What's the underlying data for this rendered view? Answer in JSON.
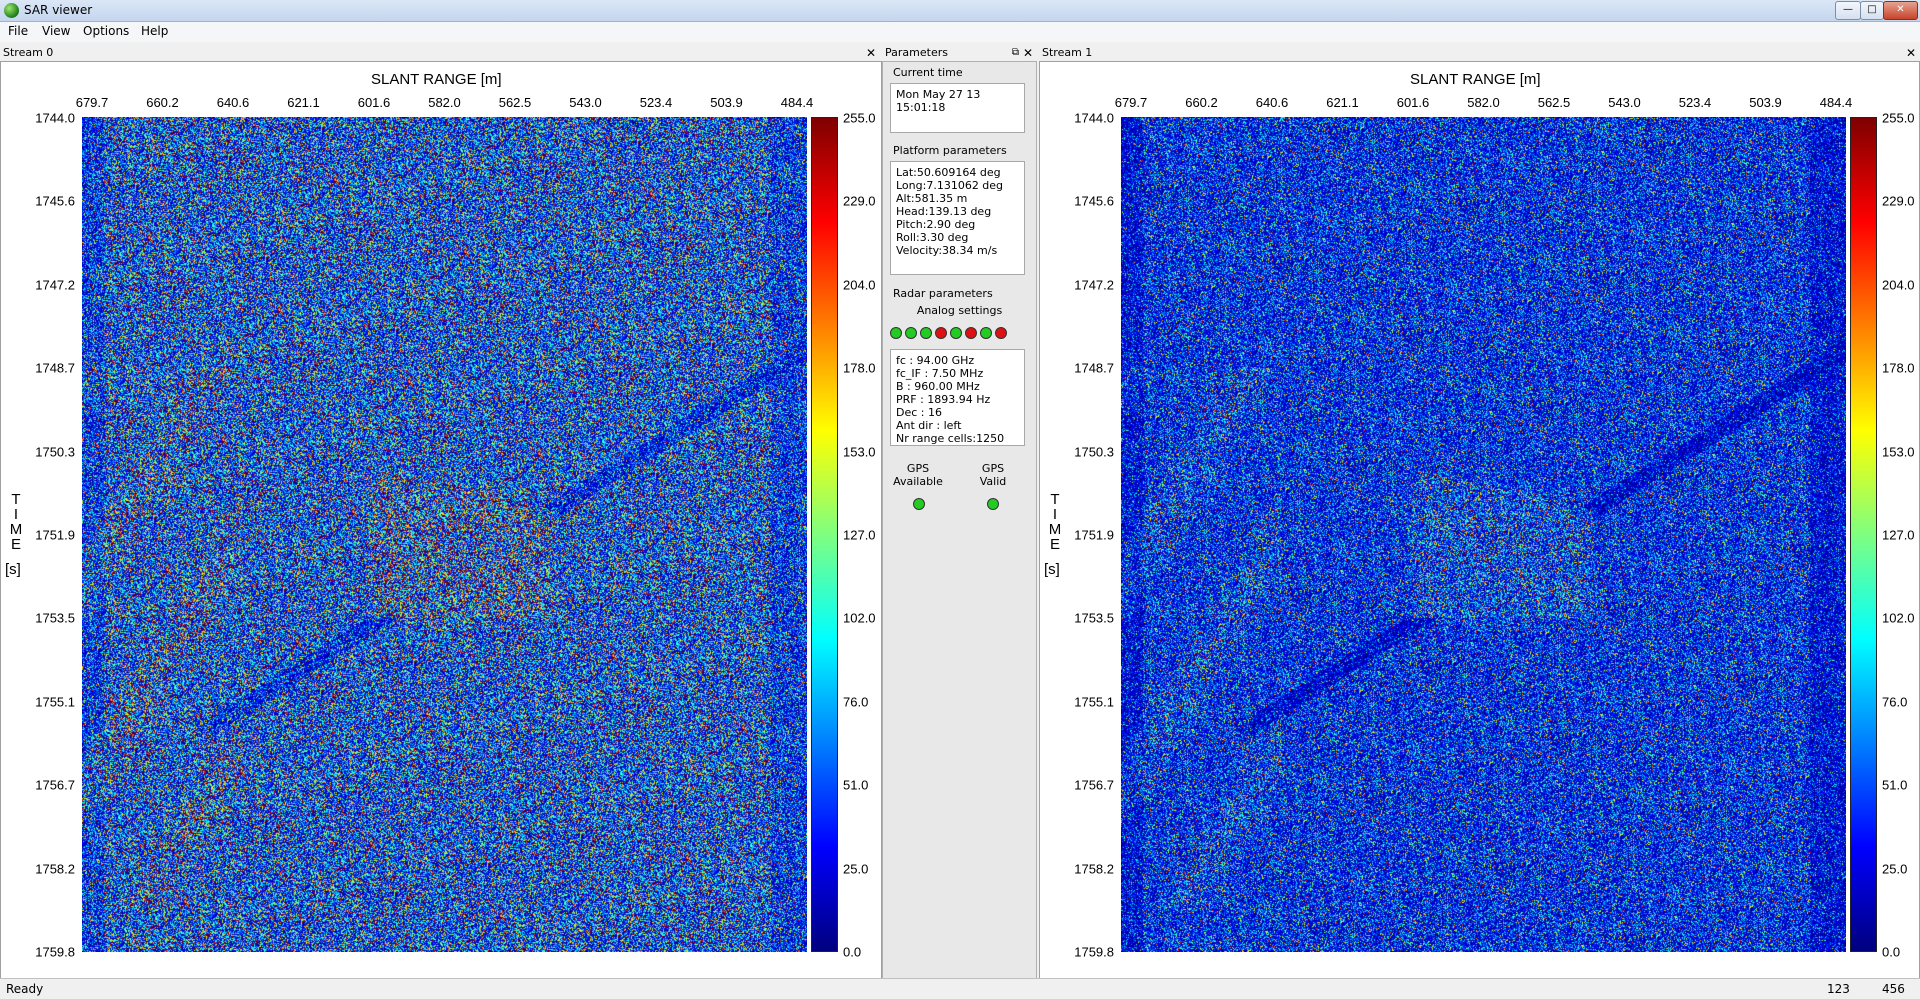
{
  "window": {
    "title": "SAR viewer"
  },
  "menu": [
    "File",
    "View",
    "Options",
    "Help"
  ],
  "stream0": {
    "header": "Stream 0",
    "x_title": "SLANT RANGE [m]",
    "x_ticks": [
      "679.7",
      "660.2",
      "640.6",
      "621.1",
      "601.6",
      "582.0",
      "562.5",
      "543.0",
      "523.4",
      "503.9",
      "484.4"
    ],
    "y_title": [
      "T",
      "I",
      "M",
      "E"
    ],
    "y_unit": "[s]",
    "y_ticks": [
      "1744.0",
      "1745.6",
      "1747.2",
      "1748.7",
      "1750.3",
      "1751.9",
      "1753.5",
      "1755.1",
      "1756.7",
      "1758.2",
      "1759.8"
    ],
    "colorbar_ticks": [
      "255.0",
      "229.0",
      "204.0",
      "178.0",
      "153.0",
      "127.0",
      "102.0",
      "76.0",
      "51.0",
      "25.0",
      "0.0"
    ]
  },
  "stream1": {
    "header": "Stream 1",
    "x_title": "SLANT RANGE [m]",
    "x_ticks": [
      "679.7",
      "660.2",
      "640.6",
      "621.1",
      "601.6",
      "582.0",
      "562.5",
      "543.0",
      "523.4",
      "503.9",
      "484.4"
    ],
    "y_title": [
      "T",
      "I",
      "M",
      "E"
    ],
    "y_unit": "[s]",
    "y_ticks": [
      "1744.0",
      "1745.6",
      "1747.2",
      "1748.7",
      "1750.3",
      "1751.9",
      "1753.5",
      "1755.1",
      "1756.7",
      "1758.2",
      "1759.8"
    ],
    "colorbar_ticks": [
      "255.0",
      "229.0",
      "204.0",
      "178.0",
      "153.0",
      "127.0",
      "102.0",
      "76.0",
      "51.0",
      "25.0",
      "0.0"
    ]
  },
  "parameters": {
    "header": "Parameters",
    "current_time_label": "Current time",
    "current_time_line1": "Mon May 27 13",
    "current_time_line2": "15:01:18",
    "platform_label": "Platform parameters",
    "platform": [
      "Lat:50.609164 deg",
      "Long:7.131062 deg",
      "Alt:581.35 m",
      "Head:139.13 deg",
      "Pitch:2.90 deg",
      "Roll:3.30 deg",
      "Velocity:38.34 m/s"
    ],
    "radar_label": "Radar parameters",
    "analog_label": "Analog settings",
    "analog_leds": [
      "green",
      "green",
      "green",
      "red",
      "green",
      "red",
      "green",
      "red"
    ],
    "radar": [
      "fc : 94.00 GHz",
      "fc_IF : 7.50 MHz",
      "B : 960.00 MHz",
      "PRF : 1893.94 Hz",
      "Dec : 16",
      "Ant dir : left",
      "Nr range cells:1250"
    ],
    "gps_available_label_1": "GPS",
    "gps_available_label_2": "Available",
    "gps_valid_label_1": "GPS",
    "gps_valid_label_2": "Valid",
    "gps_leds": [
      "green",
      "green"
    ]
  },
  "status": {
    "text": "Ready",
    "field1": "123",
    "field2": "456"
  },
  "colors": {
    "led_green": "#22cc22",
    "led_red": "#dd1111",
    "colormap": [
      "#00007f",
      "#0000ff",
      "#007fff",
      "#00ffff",
      "#7fff7f",
      "#ffff00",
      "#ff7f00",
      "#ff0000",
      "#7f0000"
    ]
  }
}
